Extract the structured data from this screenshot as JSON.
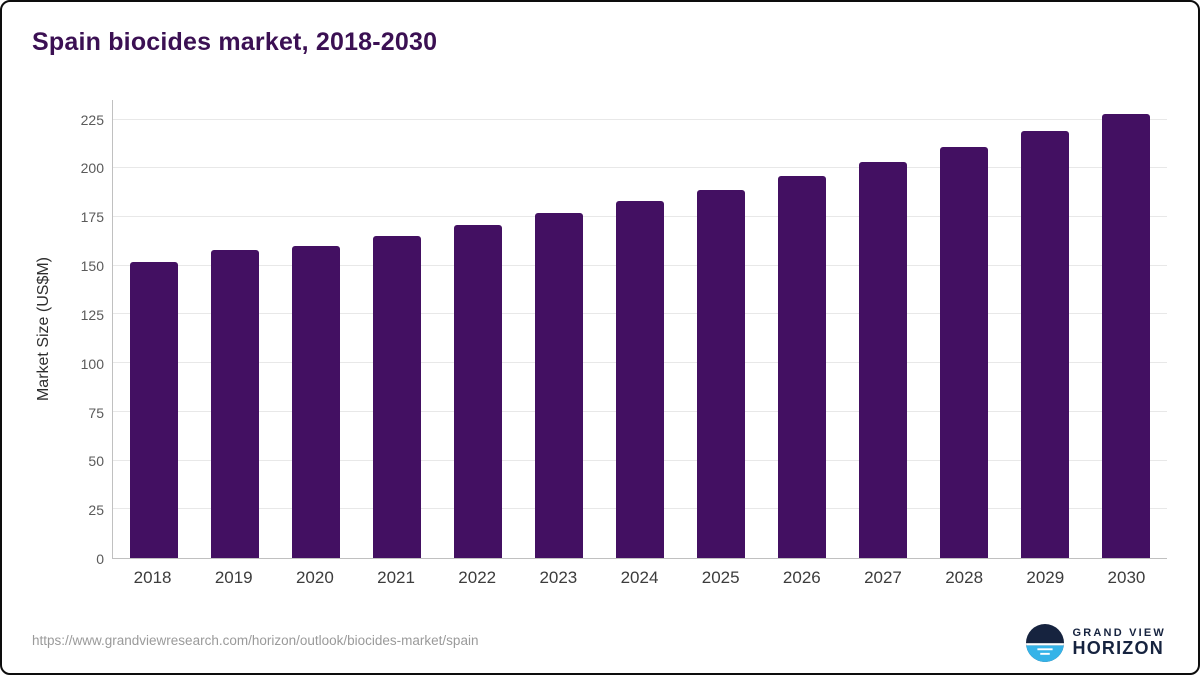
{
  "chart_data": {
    "type": "bar",
    "title": "Spain biocides market, 2018-2030",
    "xlabel": "",
    "ylabel": "Market Size (US$M)",
    "categories": [
      "2018",
      "2019",
      "2020",
      "2021",
      "2022",
      "2023",
      "2024",
      "2025",
      "2026",
      "2027",
      "2028",
      "2029",
      "2030"
    ],
    "values": [
      152,
      158,
      160,
      165,
      171,
      177,
      183,
      189,
      196,
      203,
      211,
      219,
      228
    ],
    "ylim": [
      0,
      235
    ],
    "yticks": [
      0,
      25,
      50,
      75,
      100,
      125,
      150,
      175,
      200,
      225
    ],
    "bar_color": "#431062",
    "grid": "horizontal",
    "legend": "none"
  },
  "colors": {
    "title": "#3b1053",
    "bar": "#431062",
    "gridline": "#e8e8e8",
    "logo_navy": "#16233f",
    "logo_blue": "#35b3e8"
  },
  "footer": {
    "source_url": "https://www.grandviewresearch.com/horizon/outlook/biocides-market/spain",
    "logo_line1": "GRAND VIEW",
    "logo_line2": "HORIZON"
  }
}
